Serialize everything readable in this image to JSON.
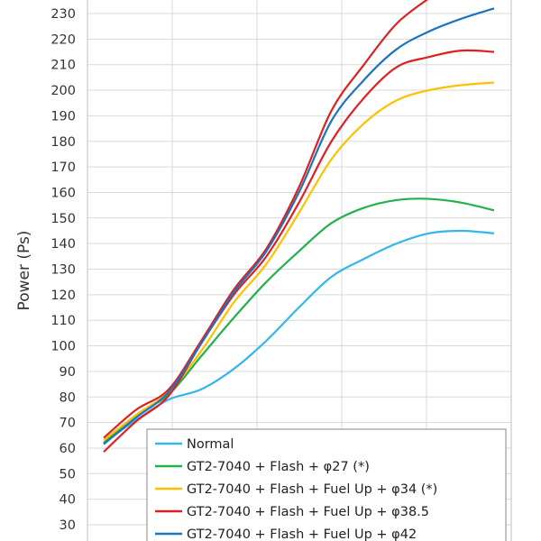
{
  "chart_data": {
    "type": "line",
    "title": "",
    "xlabel": "",
    "ylabel": "Power (Ps)",
    "ylim": [
      30,
      233
    ],
    "yticks": [
      30,
      40,
      50,
      60,
      70,
      80,
      90,
      100,
      110,
      120,
      130,
      140,
      150,
      160,
      170,
      180,
      190,
      200,
      210,
      220,
      230
    ],
    "grid": true,
    "legend_position": "bottom-right",
    "x_note": "no x-axis labels visible; x values are sample indices 0–12",
    "x": [
      0,
      1,
      2,
      3,
      4,
      5,
      6,
      7,
      8,
      9,
      10,
      11,
      12
    ],
    "series": [
      {
        "name": "Normal",
        "color": "#33b5f0",
        "values": [
          62,
          71,
          79,
          83,
          91,
          102,
          115,
          127,
          134,
          140,
          144,
          145,
          144
        ]
      },
      {
        "name": "GT2-7040 + Flash + φ27 (*)",
        "color": "#22b14c",
        "values": [
          62,
          73,
          81,
          96,
          111,
          125,
          137,
          148,
          154,
          157,
          157.5,
          156,
          153
        ]
      },
      {
        "name": "GT2-7040 + Flash + Fuel Up + φ34 (*)",
        "color": "#ffc000",
        "values": [
          63,
          73,
          82,
          98,
          117,
          132,
          152,
          173,
          187,
          196,
          200,
          202,
          203
        ]
      },
      {
        "name": "GT2-7040 + Flash + Fuel Up + φ38.5",
        "color": "#e02020",
        "values": [
          58.5,
          70.5,
          80.5,
          101,
          120,
          135,
          156,
          180,
          197,
          209,
          213,
          215.5,
          215
        ]
      },
      {
        "name": "GT2-7040 + Flash + Fuel Up + φ42",
        "color": "#1e73be",
        "values": [
          61.5,
          72,
          82,
          101,
          121,
          137,
          160,
          188,
          204,
          216,
          223,
          228,
          232
        ]
      }
    ],
    "hidden_series_tail": {
      "note": "red φ38.5 curve continues above the top of the visible plot",
      "values": [
        64,
        75,
        83,
        102,
        122,
        138,
        162,
        192,
        210,
        226,
        236
      ]
    }
  }
}
